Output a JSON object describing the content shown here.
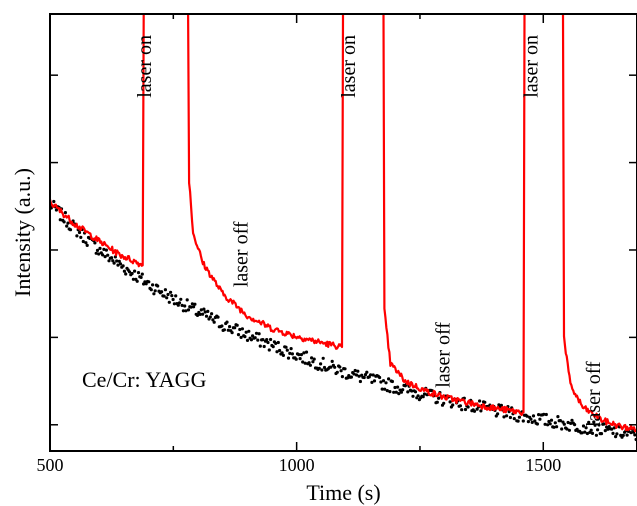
{
  "chart_data": {
    "type": "line",
    "title": "",
    "xlabel": "Time (s)",
    "ylabel": "Intensity (a.u.)",
    "xlim": [
      500,
      1690
    ],
    "ylim": [
      0,
      1
    ],
    "x_ticks": [
      500,
      1000,
      1500
    ],
    "x_tick_labels": [
      "500",
      "1000",
      "1500"
    ],
    "y_tick_labels_shown": false,
    "grid": false,
    "legend": "none",
    "inset_label": "Ce/Cr: YAGG",
    "annotations": [
      {
        "text": "laser on",
        "x": 705,
        "y": 0.88
      },
      {
        "text": "laser off",
        "x": 900,
        "y": 0.45
      },
      {
        "text": "laser on",
        "x": 1118,
        "y": 0.88
      },
      {
        "text": "laser off",
        "x": 1310,
        "y": 0.22
      },
      {
        "text": "laser on",
        "x": 1488,
        "y": 0.88
      },
      {
        "text": "laser off",
        "x": 1615,
        "y": 0.13
      }
    ],
    "series": [
      {
        "style": "scatter",
        "color": "#000000",
        "points": [
          [
            500,
            0.565
          ],
          [
            550,
            0.51
          ],
          [
            600,
            0.46
          ],
          [
            650,
            0.42
          ],
          [
            700,
            0.382
          ],
          [
            750,
            0.348
          ],
          [
            800,
            0.318
          ],
          [
            850,
            0.29
          ],
          [
            900,
            0.265
          ],
          [
            950,
            0.242
          ],
          [
            1000,
            0.22
          ],
          [
            1050,
            0.199
          ],
          [
            1100,
            0.18
          ],
          [
            1150,
            0.163
          ],
          [
            1200,
            0.147
          ],
          [
            1250,
            0.132
          ],
          [
            1300,
            0.118
          ],
          [
            1350,
            0.105
          ],
          [
            1400,
            0.093
          ],
          [
            1450,
            0.082
          ],
          [
            1500,
            0.071
          ],
          [
            1550,
            0.061
          ],
          [
            1600,
            0.052
          ],
          [
            1650,
            0.043
          ],
          [
            1690,
            0.037
          ]
        ]
      },
      {
        "style": "line",
        "color": "#ff0000",
        "segments": [
          [
            [
              500,
              0.57
            ],
            [
              550,
              0.52
            ],
            [
              600,
              0.48
            ],
            [
              640,
              0.45
            ],
            [
              660,
              0.44
            ],
            [
              688,
              0.425
            ],
            [
              690,
              1.0
            ]
          ],
          [
            [
              780,
              1.0
            ],
            [
              782,
              0.62
            ],
            [
              790,
              0.5
            ],
            [
              810,
              0.43
            ],
            [
              850,
              0.36
            ],
            [
              900,
              0.31
            ],
            [
              950,
              0.28
            ],
            [
              1000,
              0.262
            ],
            [
              1050,
              0.248
            ],
            [
              1092,
              0.238
            ],
            [
              1094,
              1.0
            ]
          ],
          [
            [
              1176,
              1.0
            ],
            [
              1178,
              0.32
            ],
            [
              1190,
              0.2
            ],
            [
              1220,
              0.16
            ],
            [
              1260,
              0.138
            ],
            [
              1300,
              0.123
            ],
            [
              1350,
              0.11
            ],
            [
              1400,
              0.098
            ],
            [
              1460,
              0.088
            ],
            [
              1462,
              1.0
            ]
          ],
          [
            [
              1540,
              1.0
            ],
            [
              1542,
              0.26
            ],
            [
              1555,
              0.15
            ],
            [
              1580,
              0.1
            ],
            [
              1620,
              0.07
            ],
            [
              1660,
              0.055
            ],
            [
              1690,
              0.05
            ]
          ]
        ]
      }
    ]
  }
}
